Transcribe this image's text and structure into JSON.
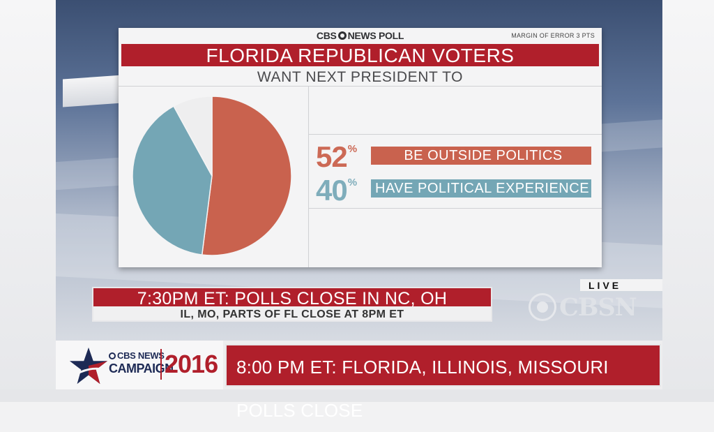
{
  "poll": {
    "brand_left": "CBS",
    "brand_right": "NEWS POLL",
    "margin_of_error": "MARGIN OF ERROR 3 PTS",
    "title": "FLORIDA REPUBLICAN VOTERS",
    "subtitle": "WANT NEXT PRESIDENT TO"
  },
  "chart_data": {
    "type": "pie",
    "title": "FLORIDA REPUBLICAN VOTERS",
    "subtitle": "WANT NEXT PRESIDENT TO",
    "slices": [
      {
        "label": "BE OUTSIDE POLITICS",
        "value": 52,
        "color": "#c9624e"
      },
      {
        "label": "HAVE POLITICAL EXPERIENCE",
        "value": 40,
        "color": "#74a6b5"
      },
      {
        "label": "",
        "value": 8,
        "color": "#eeeeef"
      }
    ],
    "value_suffix": "%"
  },
  "legend": {
    "outside": {
      "value": "52",
      "suffix": "%",
      "label": "BE OUTSIDE POLITICS"
    },
    "experience": {
      "value": "40",
      "suffix": "%",
      "label": "HAVE POLITICAL EXPERIENCE"
    }
  },
  "ticker": {
    "main": "7:30PM ET: POLLS CLOSE IN NC, OH",
    "sub": "IL, MO, PARTS OF FL CLOSE AT 8PM ET"
  },
  "network": {
    "live": "LIVE",
    "logo": "CBSN"
  },
  "lower_third": {
    "brand_cbs": "CBS NEWS",
    "brand_campaign": "CAMPAIGN",
    "brand_year": "2016",
    "headline": "8:00 PM ET: FLORIDA, ILLINOIS, MISSOURI POLLS CLOSE"
  },
  "colors": {
    "accent_red": "#b01f2b",
    "outside": "#c9624e",
    "experience": "#74a6b5"
  }
}
